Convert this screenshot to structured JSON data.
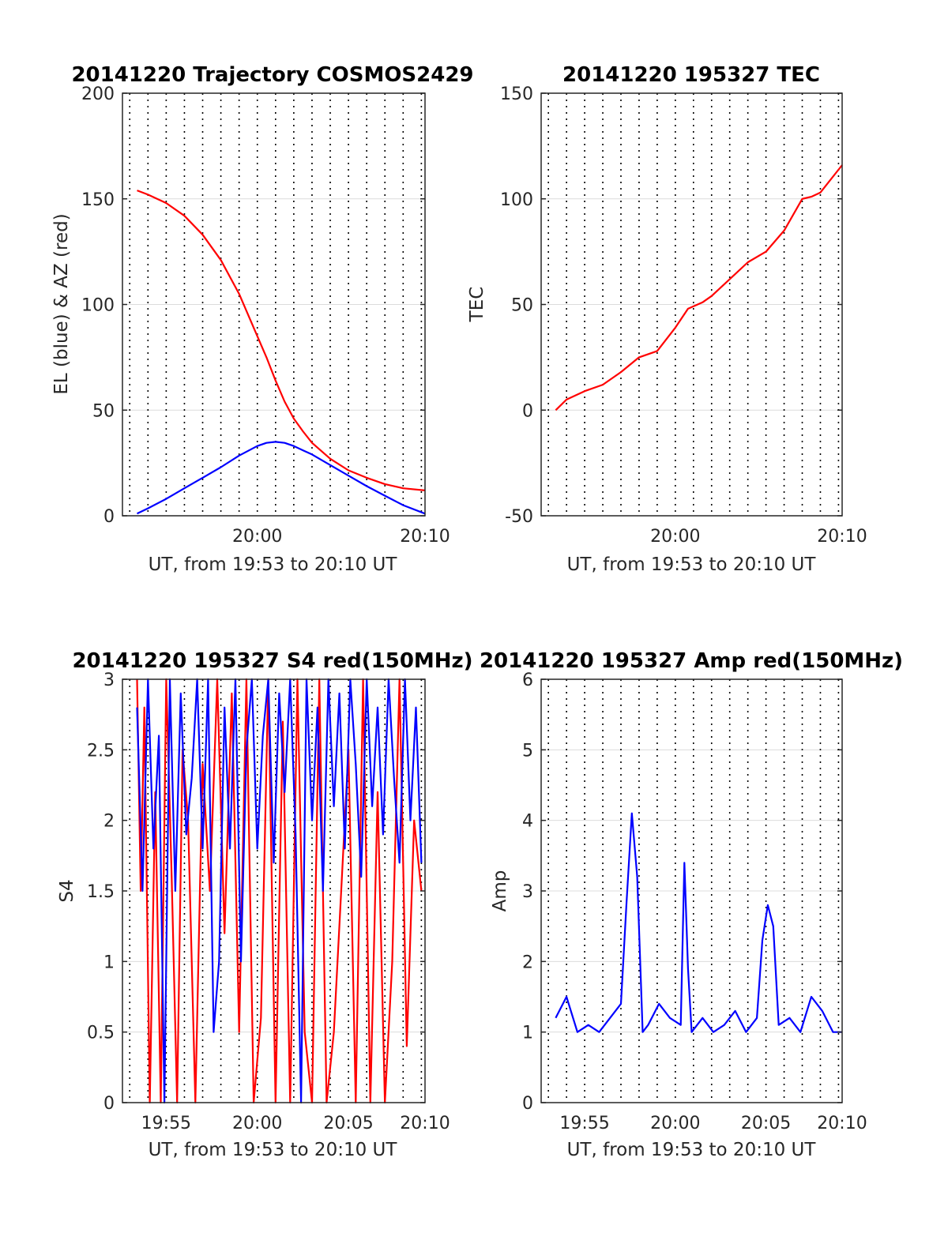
{
  "colors": {
    "el": "#0000ff",
    "az": "#ff0000",
    "red": "#ff0000",
    "blue": "#0000ff",
    "grid": "#dcdcdc",
    "axis": "#262626"
  },
  "chart_data": [
    {
      "id": "traj",
      "type": "line",
      "title": "20141220 Trajectory COSMOS2429",
      "xlabel": "UT, from 19:53 to 20:10 UT",
      "ylabel": "EL (blue) & AZ (red)",
      "xlim_minutes": [
        19.6,
        36.2
      ],
      "ylim": [
        0,
        200
      ],
      "yticks": [
        0,
        50,
        100,
        150,
        200
      ],
      "xtick_labels": [
        {
          "t": 27,
          "label": "20:00"
        },
        {
          "t": 37,
          "label": "20:10"
        }
      ],
      "grid": true,
      "series": [
        {
          "color": "#ff0000",
          "x": [
            20.4,
            21.0,
            22.0,
            23.0,
            24.0,
            25.0,
            26.0,
            27.0,
            27.5,
            28.0,
            28.5,
            29.0,
            29.5,
            30.0,
            31.0,
            32.0,
            33.0,
            34.0,
            35.0,
            36.2
          ],
          "y": [
            154,
            152,
            148,
            142,
            133,
            121,
            105,
            85,
            75,
            64,
            54,
            46,
            40,
            34.5,
            27,
            21.5,
            18,
            15,
            13,
            12
          ]
        },
        {
          "color": "#0000ff",
          "x": [
            20.4,
            21.0,
            22.0,
            23.0,
            24.0,
            25.0,
            26.0,
            27.0,
            27.5,
            28.0,
            28.5,
            29.0,
            29.5,
            30.0,
            31.0,
            32.0,
            33.0,
            34.0,
            35.0,
            36.2
          ],
          "y": [
            1,
            3.5,
            8,
            13,
            18,
            23,
            28.5,
            33,
            34.5,
            35,
            34.5,
            33,
            31,
            29,
            24,
            19,
            14,
            9.5,
            5,
            1
          ]
        }
      ]
    },
    {
      "id": "tec",
      "type": "line",
      "title": "20141220 195327 TEC",
      "xlabel": "UT, from 19:53 to 20:10 UT",
      "ylabel": "TEC",
      "xlim_minutes": [
        19.6,
        36.2
      ],
      "ylim": [
        -50,
        150
      ],
      "yticks": [
        -50,
        0,
        50,
        100,
        150
      ],
      "xtick_labels": [
        {
          "t": 27,
          "label": "20:00"
        },
        {
          "t": 37,
          "label": "20:10"
        }
      ],
      "grid": true,
      "series": [
        {
          "color": "#ff0000",
          "x": [
            20.4,
            21.0,
            22.0,
            23.0,
            24.0,
            25.0,
            26.0,
            27.0,
            27.7,
            28.5,
            29.0,
            30.0,
            31.0,
            32.0,
            33.0,
            34.0,
            34.5,
            35.0,
            36.2
          ],
          "y": [
            0,
            5,
            9,
            12,
            18,
            25,
            28,
            39,
            48,
            51,
            54,
            62,
            70,
            75,
            85,
            100,
            101,
            103,
            116
          ]
        }
      ]
    },
    {
      "id": "s4",
      "type": "line",
      "title": "20141220 195327 S4 red(150MHz)",
      "xlabel": "UT, from 19:53 to 20:10 UT",
      "ylabel": "S4",
      "xlim_minutes": [
        19.6,
        36.2
      ],
      "ylim": [
        0,
        3
      ],
      "yticks": [
        0,
        0.5,
        1,
        1.5,
        2,
        2.5,
        3
      ],
      "xtick_labels": [
        {
          "t": 22,
          "label": "19:55"
        },
        {
          "t": 27,
          "label": "20:00"
        },
        {
          "t": 32,
          "label": "20:05"
        },
        {
          "t": 37,
          "label": "20:10"
        }
      ],
      "grid": true,
      "series": [
        {
          "name": "red (150MHz)",
          "color": "#ff0000",
          "x": [
            20.4,
            20.6,
            20.8,
            21.1,
            21.4,
            21.7,
            22.0,
            22.3,
            22.6,
            22.9,
            23.2,
            23.6,
            24.0,
            24.4,
            24.8,
            25.2,
            25.6,
            26.0,
            26.4,
            26.8,
            27.2,
            27.6,
            28.0,
            28.4,
            28.8,
            29.2,
            29.6,
            30.0,
            30.4,
            30.8,
            31.2,
            31.6,
            32.0,
            32.4,
            32.8,
            33.2,
            33.6,
            34.0,
            34.4,
            34.8,
            35.2,
            35.6,
            36.0
          ],
          "y": [
            3,
            1.5,
            2.8,
            0,
            2.2,
            0,
            3,
            1.6,
            0,
            2.5,
            2.0,
            0,
            2.4,
            1.5,
            3,
            1.2,
            2.9,
            0.5,
            3,
            0,
            0.6,
            3,
            0,
            2.7,
            0,
            3,
            0.5,
            0,
            3,
            0,
            0.5,
            1.5,
            2.5,
            0,
            3,
            0,
            2.2,
            0,
            1.0,
            3,
            0.4,
            2.0,
            1.5
          ]
        },
        {
          "name": "blue",
          "color": "#0000ff",
          "x": [
            20.4,
            20.7,
            21.0,
            21.3,
            21.6,
            21.9,
            22.2,
            22.5,
            22.8,
            23.1,
            23.4,
            23.7,
            24.0,
            24.3,
            24.6,
            24.9,
            25.2,
            25.5,
            25.8,
            26.1,
            26.4,
            26.7,
            27.0,
            27.3,
            27.6,
            27.9,
            28.2,
            28.5,
            28.8,
            29.1,
            29.4,
            29.7,
            30.0,
            30.3,
            30.6,
            30.9,
            31.2,
            31.5,
            31.8,
            32.1,
            32.4,
            32.7,
            33.0,
            33.3,
            33.6,
            33.9,
            34.2,
            34.5,
            34.8,
            35.1,
            35.4,
            35.7,
            36.0
          ],
          "y": [
            2.8,
            1.5,
            3,
            1.8,
            2.6,
            0,
            3,
            1.5,
            2.9,
            1.9,
            2.3,
            3,
            1.8,
            3,
            0.5,
            1.0,
            2.8,
            1.8,
            3,
            1.0,
            2.5,
            3,
            1.8,
            2.6,
            3,
            1.7,
            2.9,
            2.2,
            3,
            1.9,
            0,
            3,
            2.0,
            2.8,
            1.5,
            3,
            2.1,
            2.9,
            1.8,
            3,
            2.4,
            1.6,
            3,
            2.1,
            2.8,
            1.9,
            3,
            2.3,
            1.7,
            3,
            2.0,
            2.8,
            1.7
          ]
        }
      ]
    },
    {
      "id": "amp",
      "type": "line",
      "title": "20141220 195327 Amp red(150MHz)",
      "xlabel": "UT, from 19:53 to 20:10 UT",
      "ylabel": "Amp",
      "xlim_minutes": [
        19.6,
        36.2
      ],
      "ylim": [
        0,
        6
      ],
      "yticks": [
        0,
        1,
        2,
        3,
        4,
        5,
        6
      ],
      "xtick_labels": [
        {
          "t": 22,
          "label": "19:55"
        },
        {
          "t": 27,
          "label": "20:00"
        },
        {
          "t": 32,
          "label": "20:05"
        },
        {
          "t": 37,
          "label": "20:10"
        }
      ],
      "grid": true,
      "series": [
        {
          "name": "blue",
          "color": "#0000ff",
          "x": [
            20.4,
            21.0,
            21.6,
            22.2,
            22.8,
            23.4,
            24.0,
            24.3,
            24.6,
            24.9,
            25.2,
            25.5,
            26.1,
            26.7,
            27.3,
            27.5,
            27.7,
            27.9,
            28.5,
            29.1,
            29.7,
            30.3,
            30.9,
            31.5,
            31.8,
            32.1,
            32.4,
            32.7,
            33.3,
            33.9,
            34.5,
            35.1,
            35.7,
            36.2
          ],
          "y": [
            1.2,
            1.5,
            1.0,
            1.1,
            1.0,
            1.2,
            1.4,
            2.8,
            4.1,
            3.2,
            1.0,
            1.1,
            1.4,
            1.2,
            1.1,
            3.4,
            1.9,
            1.0,
            1.2,
            1.0,
            1.1,
            1.3,
            1.0,
            1.2,
            2.3,
            2.8,
            2.5,
            1.1,
            1.2,
            1.0,
            1.5,
            1.3,
            1.0,
            1.0
          ]
        }
      ]
    }
  ]
}
